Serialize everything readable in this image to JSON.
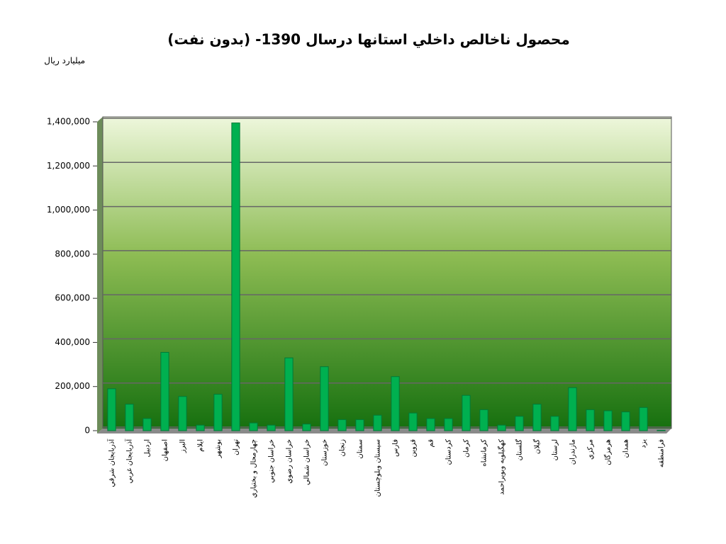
{
  "chart_data": {
    "type": "bar",
    "title": "محصول ناخالص داخلي استانها درسال 1390- (بدون نفت)",
    "y_label": "ميليارد ريال",
    "categories": [
      "آذربايجان شرقي",
      "آذربايجان غربي",
      "اردبيل",
      "اصفهان",
      "البرز",
      "ايلام",
      "بوشهر",
      "تهران",
      "چهارمحال و بختياري",
      "خراسان جنوبي",
      "خراسان رضوي",
      "خراسان شمالي",
      "خوزستان",
      "زنجان",
      "سمنان",
      "سيستان وبلوچستان",
      "فارس",
      "قزوين",
      "قم",
      "كردستان",
      "كرمان",
      "كرمانشاه",
      "كهگيلويه وبويراحمد",
      "گلستان",
      "گيلان",
      "لرستان",
      "مازندران",
      "مركزي",
      "هرمزگان",
      "همدان",
      "يزد",
      "فرامنطقه"
    ],
    "values": [
      190000,
      120000,
      55000,
      355000,
      155000,
      25000,
      165000,
      1395000,
      35000,
      25000,
      330000,
      30000,
      290000,
      50000,
      50000,
      70000,
      245000,
      80000,
      55000,
      55000,
      160000,
      95000,
      25000,
      65000,
      120000,
      65000,
      195000,
      95000,
      90000,
      85000,
      105000,
      2000
    ],
    "color": "#00b050",
    "ylim": [
      0,
      1400000
    ],
    "yticks": [
      {
        "value": 0,
        "label": "0"
      },
      {
        "value": 200000,
        "label": "200,000"
      },
      {
        "value": 400000,
        "label": "400,000"
      },
      {
        "value": 600000,
        "label": "600,000"
      },
      {
        "value": 800000,
        "label": "800,000"
      },
      {
        "value": 1000000,
        "label": "1,000,000"
      },
      {
        "value": 1200000,
        "label": "1,200,000"
      },
      {
        "value": 1400000,
        "label": "1,400,000"
      }
    ],
    "grid": true
  }
}
